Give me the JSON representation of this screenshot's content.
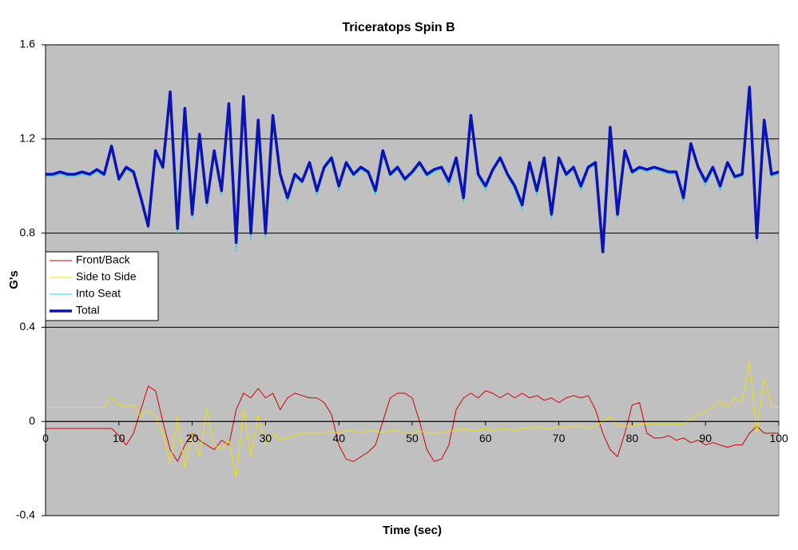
{
  "chart_data": {
    "type": "line",
    "title": "Triceratops Spin B",
    "x_label": "Time (sec)",
    "y_label": "G's",
    "x": [
      0,
      1,
      2,
      3,
      4,
      5,
      6,
      7,
      8,
      9,
      10,
      11,
      12,
      13,
      14,
      15,
      16,
      17,
      18,
      19,
      20,
      21,
      22,
      23,
      24,
      25,
      26,
      27,
      28,
      29,
      30,
      31,
      32,
      33,
      34,
      35,
      36,
      37,
      38,
      39,
      40,
      41,
      42,
      43,
      44,
      45,
      46,
      47,
      48,
      49,
      50,
      51,
      52,
      53,
      54,
      55,
      56,
      57,
      58,
      59,
      60,
      61,
      62,
      63,
      64,
      65,
      66,
      67,
      68,
      69,
      70,
      71,
      72,
      73,
      74,
      75,
      76,
      77,
      78,
      79,
      80,
      81,
      82,
      83,
      84,
      85,
      86,
      87,
      88,
      89,
      90,
      91,
      92,
      93,
      94,
      95,
      96,
      97,
      98,
      99,
      100
    ],
    "xlim": [
      0,
      100
    ],
    "xticks": [
      0,
      10,
      20,
      30,
      40,
      50,
      60,
      70,
      80,
      90,
      100
    ],
    "ylim": [
      -0.4,
      1.6
    ],
    "yticks": [
      -0.4,
      0,
      0.4,
      0.8,
      1.2,
      1.6
    ],
    "grid": true,
    "legend": "left",
    "series": [
      {
        "name": "Front/Back",
        "color": "#d00000",
        "width": 1,
        "values": [
          -0.03,
          -0.03,
          -0.03,
          -0.03,
          -0.03,
          -0.03,
          -0.03,
          -0.03,
          -0.03,
          -0.03,
          -0.06,
          -0.1,
          -0.05,
          0.05,
          0.15,
          0.13,
          0.0,
          -0.12,
          -0.17,
          -0.1,
          -0.05,
          -0.08,
          -0.1,
          -0.12,
          -0.08,
          -0.1,
          0.05,
          0.12,
          0.1,
          0.14,
          0.1,
          0.12,
          0.05,
          0.1,
          0.12,
          0.11,
          0.1,
          0.1,
          0.08,
          0.03,
          -0.1,
          -0.16,
          -0.17,
          -0.15,
          -0.13,
          -0.1,
          0.0,
          0.1,
          0.12,
          0.12,
          0.1,
          0.0,
          -0.12,
          -0.17,
          -0.16,
          -0.1,
          0.05,
          0.1,
          0.12,
          0.1,
          0.13,
          0.12,
          0.1,
          0.12,
          0.1,
          0.12,
          0.1,
          0.11,
          0.09,
          0.1,
          0.08,
          0.1,
          0.11,
          0.1,
          0.11,
          0.05,
          -0.05,
          -0.12,
          -0.15,
          -0.05,
          0.07,
          0.08,
          -0.05,
          -0.07,
          -0.07,
          -0.06,
          -0.08,
          -0.07,
          -0.09,
          -0.08,
          -0.1,
          -0.09,
          -0.1,
          -0.11,
          -0.1,
          -0.1,
          -0.05,
          -0.02,
          -0.05,
          -0.05,
          -0.05
        ]
      },
      {
        "name": "Side to Side",
        "color": "#f0e000",
        "width": 1,
        "values": [
          0.06,
          0.06,
          0.06,
          0.06,
          0.06,
          0.06,
          0.06,
          0.06,
          0.06,
          0.1,
          0.07,
          0.06,
          0.07,
          0.02,
          0.05,
          0.02,
          -0.05,
          -0.18,
          0.02,
          -0.2,
          -0.05,
          -0.15,
          0.05,
          -0.1,
          -0.12,
          -0.08,
          -0.24,
          0.05,
          -0.15,
          0.03,
          -0.1,
          -0.05,
          -0.08,
          -0.07,
          -0.06,
          -0.05,
          -0.05,
          -0.05,
          -0.05,
          -0.04,
          -0.05,
          -0.04,
          -0.04,
          -0.05,
          -0.04,
          -0.04,
          -0.05,
          -0.04,
          -0.04,
          -0.05,
          -0.05,
          -0.04,
          -0.05,
          -0.05,
          -0.05,
          -0.04,
          -0.04,
          -0.03,
          -0.04,
          -0.04,
          -0.03,
          -0.04,
          -0.03,
          -0.03,
          -0.04,
          -0.03,
          -0.03,
          -0.02,
          -0.03,
          -0.03,
          -0.02,
          -0.03,
          -0.02,
          -0.02,
          -0.03,
          -0.02,
          0.0,
          0.02,
          -0.02,
          -0.02,
          -0.02,
          -0.01,
          -0.01,
          -0.01,
          -0.01,
          -0.01,
          -0.01,
          -0.01,
          0.01,
          0.03,
          0.04,
          0.06,
          0.08,
          0.06,
          0.1,
          0.08,
          0.25,
          -0.05,
          0.18,
          0.06,
          0.06
        ]
      },
      {
        "name": "Into Seat",
        "color": "#33ccee",
        "width": 1,
        "values": [
          1.04,
          1.04,
          1.05,
          1.04,
          1.04,
          1.05,
          1.04,
          1.06,
          1.04,
          1.16,
          1.02,
          1.07,
          1.05,
          0.94,
          0.82,
          1.14,
          1.07,
          1.39,
          0.8,
          1.32,
          0.86,
          1.21,
          0.91,
          1.14,
          0.96,
          1.34,
          0.72,
          1.37,
          0.77,
          1.27,
          0.78,
          1.29,
          1.04,
          0.93,
          1.04,
          1.01,
          1.09,
          0.96,
          1.07,
          1.11,
          0.98,
          1.09,
          1.04,
          1.07,
          1.05,
          0.96,
          1.14,
          1.04,
          1.07,
          1.02,
          1.05,
          1.09,
          1.04,
          1.06,
          1.07,
          1.0,
          1.11,
          0.93,
          1.29,
          1.04,
          0.98,
          1.06,
          1.11,
          1.04,
          0.98,
          0.9,
          1.09,
          0.96,
          1.11,
          0.86,
          1.11,
          1.04,
          1.07,
          0.98,
          1.07,
          1.09,
          0.72,
          1.24,
          0.86,
          1.14,
          1.05,
          1.07,
          1.06,
          1.07,
          1.06,
          1.05,
          1.05,
          0.93,
          1.17,
          1.07,
          1.0,
          1.07,
          0.98,
          1.09,
          1.03,
          1.04,
          1.41,
          0.76,
          1.27,
          1.04,
          1.05
        ]
      },
      {
        "name": "Total",
        "color": "#0a14b4",
        "width": 3.5,
        "values": [
          1.05,
          1.05,
          1.06,
          1.05,
          1.05,
          1.06,
          1.05,
          1.07,
          1.05,
          1.17,
          1.03,
          1.08,
          1.06,
          0.95,
          0.83,
          1.15,
          1.08,
          1.4,
          0.82,
          1.33,
          0.88,
          1.22,
          0.93,
          1.15,
          0.98,
          1.35,
          0.76,
          1.38,
          0.8,
          1.28,
          0.8,
          1.3,
          1.05,
          0.95,
          1.05,
          1.02,
          1.1,
          0.98,
          1.08,
          1.12,
          1.0,
          1.1,
          1.05,
          1.08,
          1.06,
          0.98,
          1.15,
          1.05,
          1.08,
          1.03,
          1.06,
          1.1,
          1.05,
          1.07,
          1.08,
          1.02,
          1.12,
          0.95,
          1.3,
          1.05,
          1.0,
          1.07,
          1.12,
          1.05,
          1.0,
          0.92,
          1.1,
          0.98,
          1.12,
          0.88,
          1.12,
          1.05,
          1.08,
          1.0,
          1.08,
          1.1,
          0.72,
          1.25,
          0.88,
          1.15,
          1.06,
          1.08,
          1.07,
          1.08,
          1.07,
          1.06,
          1.06,
          0.95,
          1.18,
          1.08,
          1.02,
          1.08,
          1.0,
          1.1,
          1.04,
          1.05,
          1.42,
          0.78,
          1.28,
          1.05,
          1.06
        ]
      }
    ]
  }
}
